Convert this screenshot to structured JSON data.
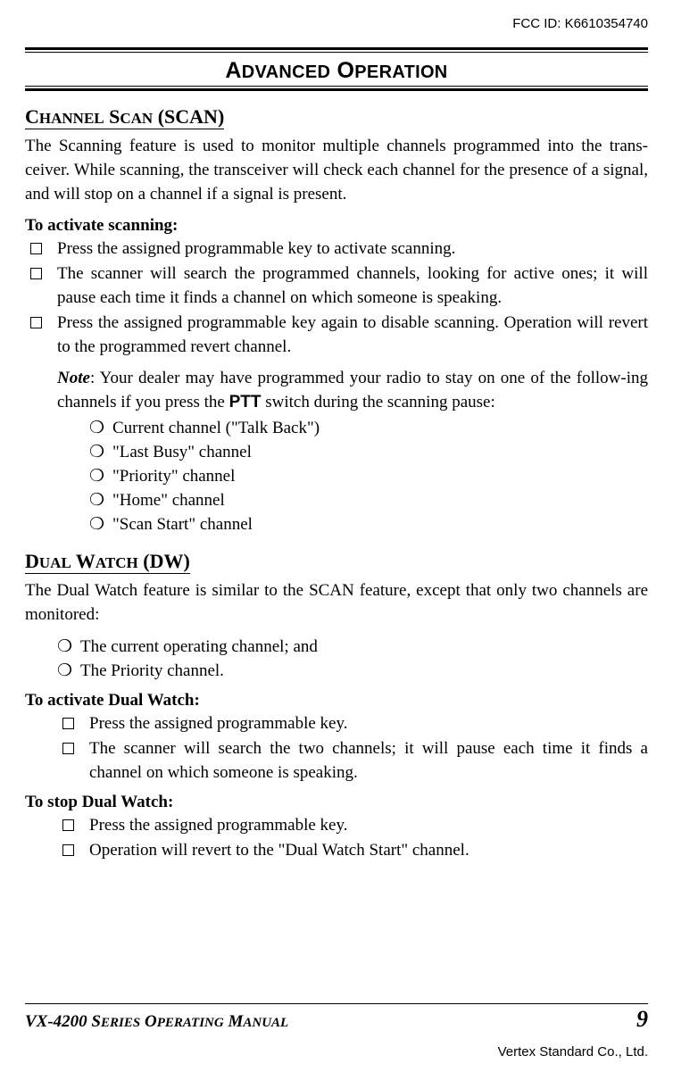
{
  "header": {
    "fcc_id": "FCC ID: K6610354740"
  },
  "title": {
    "first_cap": "A",
    "first_rest": "DVANCED",
    "second_cap": "O",
    "second_rest": "PERATION"
  },
  "section1": {
    "heading_parts": [
      "C",
      "HANNEL",
      " S",
      "CAN",
      " (SCAN)"
    ],
    "intro": "The Scanning feature is used to monitor multiple channels programmed into the trans-ceiver. While scanning, the transceiver will check each channel for the presence of a signal, and will stop on a channel if a signal is present.",
    "activate_title": "To activate scanning:",
    "checklist": [
      "Press the assigned programmable key to activate scanning.",
      "The scanner will search the programmed channels, looking for active ones; it will pause each time it finds a channel on which someone is speaking.",
      "Press the assigned programmable key again to disable scanning. Operation will revert to the programmed revert channel."
    ],
    "note_prefix": "Note",
    "note_before_ptt": ": Your dealer may have programmed your radio to stay on one of the follow-ing channels if you press the ",
    "ptt": "PTT",
    "note_after_ptt": " switch during the scanning pause:",
    "sublist": [
      "Current channel (\"Talk Back\")",
      "\"Last Busy\" channel",
      "\"Priority\" channel",
      "\"Home\" channel",
      "\"Scan Start\" channel"
    ]
  },
  "section2": {
    "heading_parts": [
      "D",
      "UAL",
      " W",
      "ATCH",
      " (DW)"
    ],
    "intro": "The Dual Watch feature is similar to the SCAN feature, except that only two channels are monitored:",
    "monitored": [
      "The current operating channel; and",
      "The Priority channel."
    ],
    "activate_title": "To activate Dual Watch:",
    "activate_list": [
      "Press the assigned programmable key.",
      "The scanner will search the two channels; it will pause each time it finds a channel on which someone is speaking."
    ],
    "stop_title": "To stop Dual Watch:",
    "stop_list": [
      "Press the assigned programmable key.",
      "Operation will revert to the \"Dual Watch Start\" channel."
    ]
  },
  "footer": {
    "manual_parts": [
      "VX-4200 S",
      "ERIES",
      " O",
      "PERATING",
      " M",
      "ANUAL"
    ],
    "page": "9",
    "company": "Vertex Standard Co., Ltd."
  },
  "bullets": {
    "circle": "❍"
  }
}
